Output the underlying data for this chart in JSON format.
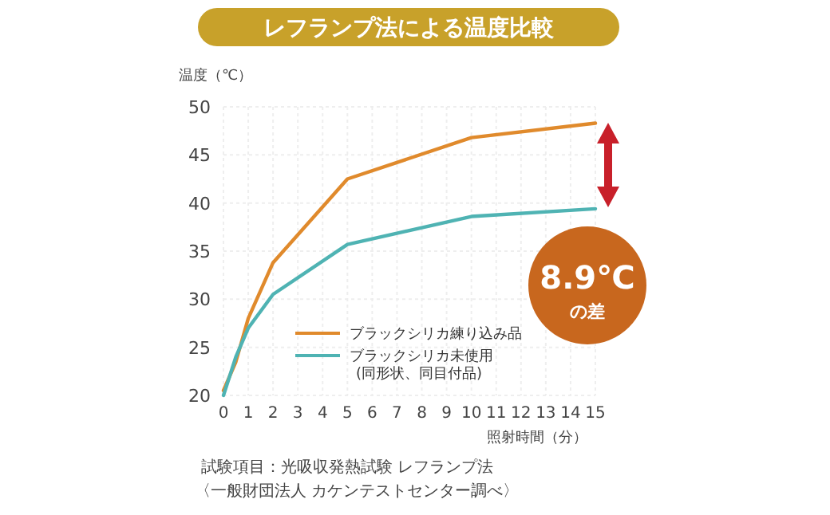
{
  "chart_data": {
    "type": "line",
    "title": "レフランプ法による温度比較",
    "xlabel": "照射時間（分）",
    "ylabel": "温度（℃）",
    "x": [
      0,
      0.5,
      1,
      2,
      5,
      10,
      15
    ],
    "series": [
      {
        "name": "ブラックシリカ練り込み品",
        "color": "#e08a2c",
        "values": [
          20.5,
          23.5,
          28,
          33.8,
          42.5,
          46.8,
          48.3
        ]
      },
      {
        "name": "ブラックシリカ未使用\n(同形状、同目付品)",
        "color": "#4fb3b3",
        "values": [
          20,
          24,
          27,
          30.5,
          35.7,
          38.6,
          39.4
        ]
      }
    ],
    "xlim": [
      0,
      15
    ],
    "xticks": [
      0,
      1,
      2,
      3,
      4,
      5,
      6,
      7,
      8,
      9,
      10,
      11,
      12,
      13,
      14,
      15
    ],
    "ylim": [
      20,
      50
    ],
    "yticks": [
      20,
      25,
      30,
      35,
      40,
      45,
      50
    ],
    "grid": true,
    "legend": "bottom right",
    "marker": "none",
    "line_style": "solid",
    "annotations": [
      "8.9℃\nの差",
      "試験項目：光吸収発熱試験 レフランプ法",
      "〈一般財団法人 カケンテストセンター調べ〉"
    ]
  }
}
